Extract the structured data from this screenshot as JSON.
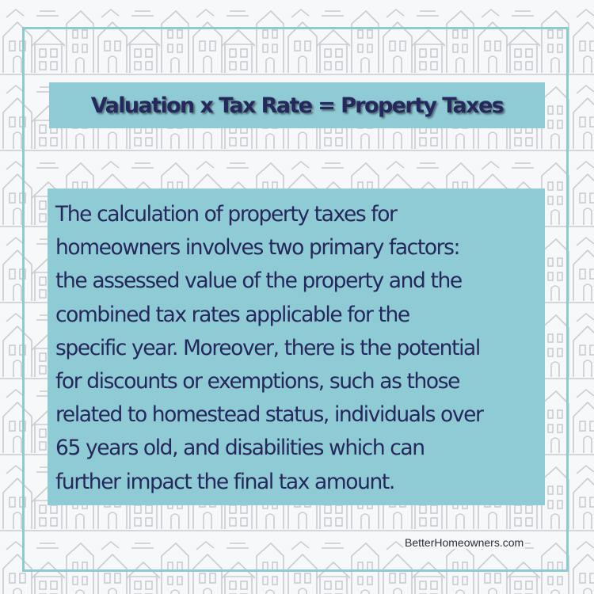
{
  "title": "Valuation x Tax Rate = Property Taxes",
  "body_lines": [
    "The calculation of property taxes for",
    "homeowners involves two primary factors:",
    "the assessed value of the property and the",
    "combined tax rates applicable for the",
    "specific year. Moreover, there is the potential",
    "for discounts or exemptions, such as those",
    "related to homestead status, individuals over",
    "65 years old, and disabilities which can",
    "further impact the final tax amount."
  ],
  "footer": "BetterHomeowners.com",
  "colors": {
    "accent_teal": "#8fcbd4",
    "frame_teal": "#8ecbd1",
    "text_navy": "#26275c",
    "background": "#f7f8f9",
    "house_outline": "#c9ccd1"
  },
  "background_pattern": "house-outline-pattern"
}
